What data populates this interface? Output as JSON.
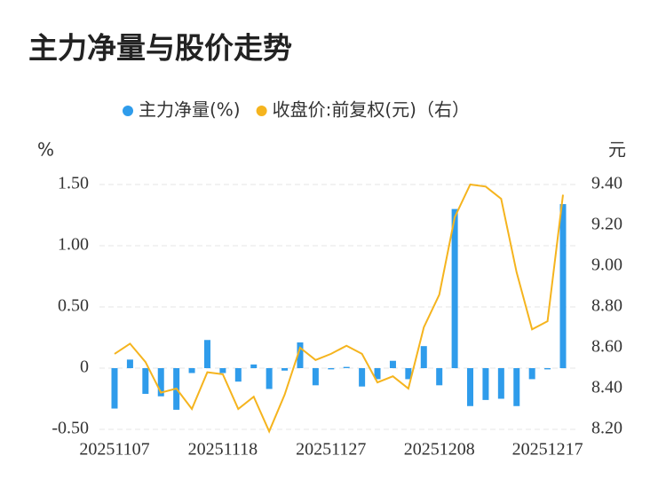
{
  "chart_data": {
    "type": "bar_line",
    "title": "主力净量与股价走势",
    "y_label": "%",
    "y2_label": "元",
    "categories": [
      "20251107",
      null,
      null,
      null,
      null,
      null,
      null,
      "20251118",
      null,
      null,
      null,
      null,
      null,
      null,
      "20251127",
      null,
      null,
      null,
      null,
      null,
      null,
      "20251208",
      null,
      null,
      null,
      null,
      null,
      null,
      "20251217",
      null
    ],
    "series": [
      {
        "name": "主力净量(%)",
        "color": "#2f9ceb",
        "kind": "bar",
        "values": [
          -0.33,
          0.07,
          -0.21,
          -0.23,
          -0.34,
          -0.04,
          0.23,
          -0.04,
          -0.11,
          0.03,
          -0.17,
          -0.02,
          0.21,
          -0.14,
          -0.01,
          0.01,
          -0.15,
          -0.09,
          0.06,
          -0.09,
          0.18,
          -0.14,
          1.3,
          -0.31,
          -0.26,
          -0.25,
          -0.31,
          -0.09,
          -0.01,
          1.34
        ]
      },
      {
        "name": "收盘价:前复权(元)（右）",
        "color": "#f5b41e",
        "kind": "line",
        "axis": "y2",
        "values": [
          8.57,
          8.62,
          8.53,
          8.38,
          8.4,
          8.3,
          8.48,
          8.47,
          8.3,
          8.36,
          8.19,
          8.37,
          8.6,
          8.54,
          8.57,
          8.61,
          8.57,
          8.43,
          8.46,
          8.4,
          8.7,
          8.86,
          9.24,
          9.4,
          9.39,
          9.33,
          8.97,
          8.69,
          8.73,
          9.35
        ]
      }
    ],
    "ylim": [
      -0.5,
      1.5
    ],
    "yticks": [
      {
        "value": -0.5,
        "label": "-0.50"
      },
      0,
      {
        "value": 0.5,
        "label": "0.50"
      },
      {
        "value": 1,
        "label": "1.00"
      },
      {
        "value": 1.5,
        "label": "1.50"
      }
    ],
    "y2lim": [
      8.2,
      9.4
    ],
    "y2ticks": [
      {
        "value": 8.2,
        "label": "8.20"
      },
      {
        "value": 8.4,
        "label": "8.40"
      },
      {
        "value": 8.6,
        "label": "8.60"
      },
      {
        "value": 8.8,
        "label": "8.80"
      },
      {
        "value": 9,
        "label": "9.00"
      },
      {
        "value": 9.2,
        "label": "9.20"
      },
      {
        "value": 9.4,
        "label": "9.40"
      }
    ],
    "grid": true
  }
}
